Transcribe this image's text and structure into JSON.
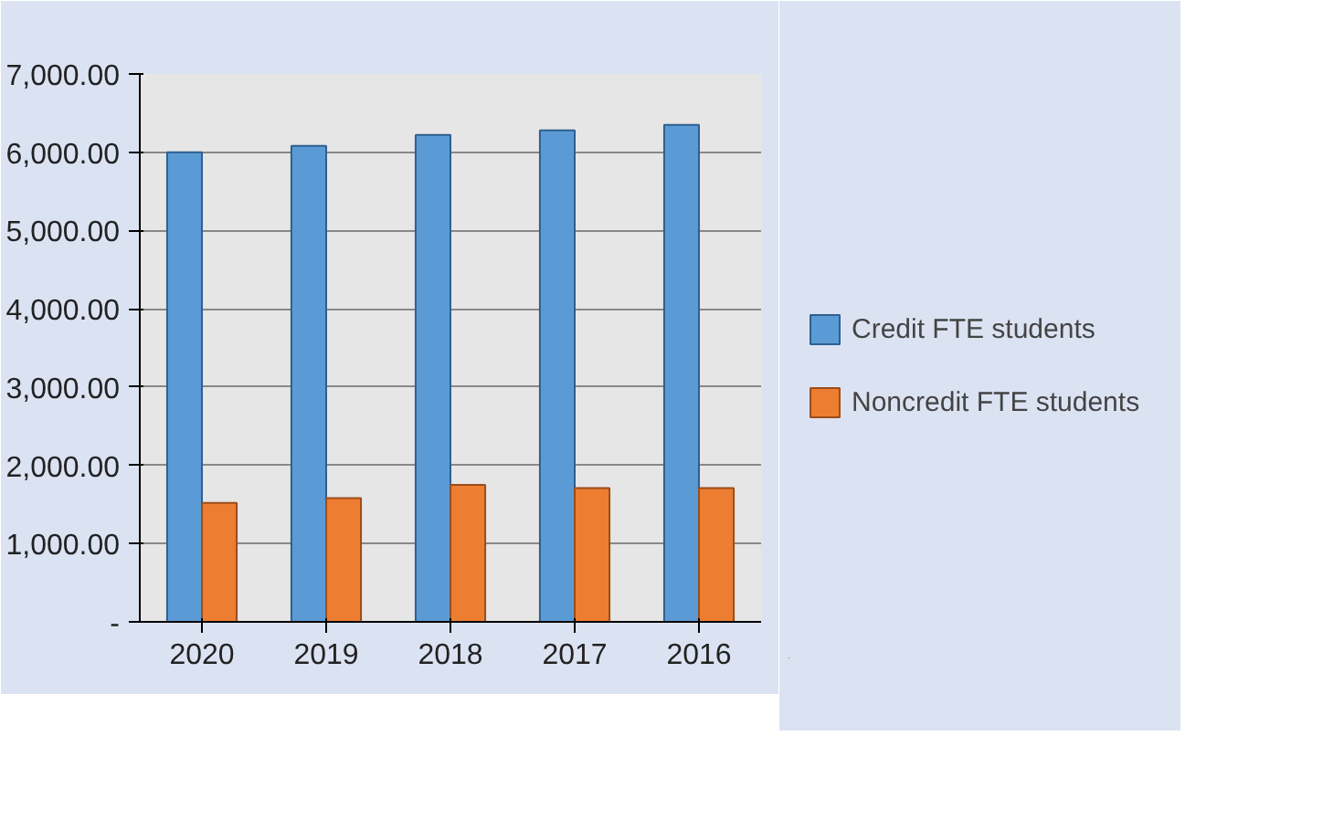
{
  "chart_data": {
    "type": "bar",
    "categories": [
      "2020",
      "2019",
      "2018",
      "2017",
      "2016"
    ],
    "series": [
      {
        "name": "Credit FTE students",
        "color": "#5b9bd5",
        "values": [
          6000,
          6080,
          6220,
          6280,
          6350
        ]
      },
      {
        "name": "Noncredit FTE students",
        "color": "#ed7d31",
        "values": [
          1520,
          1580,
          1750,
          1710,
          1710
        ]
      }
    ],
    "ylim": [
      0,
      7000
    ],
    "yticks": [
      {
        "value": 0,
        "label": "-"
      },
      {
        "value": 1000,
        "label": "1,000.00"
      },
      {
        "value": 2000,
        "label": "2,000.00"
      },
      {
        "value": 3000,
        "label": "3,000.00"
      },
      {
        "value": 4000,
        "label": "4,000.00"
      },
      {
        "value": 5000,
        "label": "5,000.00"
      },
      {
        "value": 6000,
        "label": "6,000.00"
      },
      {
        "value": 7000,
        "label": "7,000.00"
      }
    ],
    "grid": "y",
    "legend": "right"
  }
}
